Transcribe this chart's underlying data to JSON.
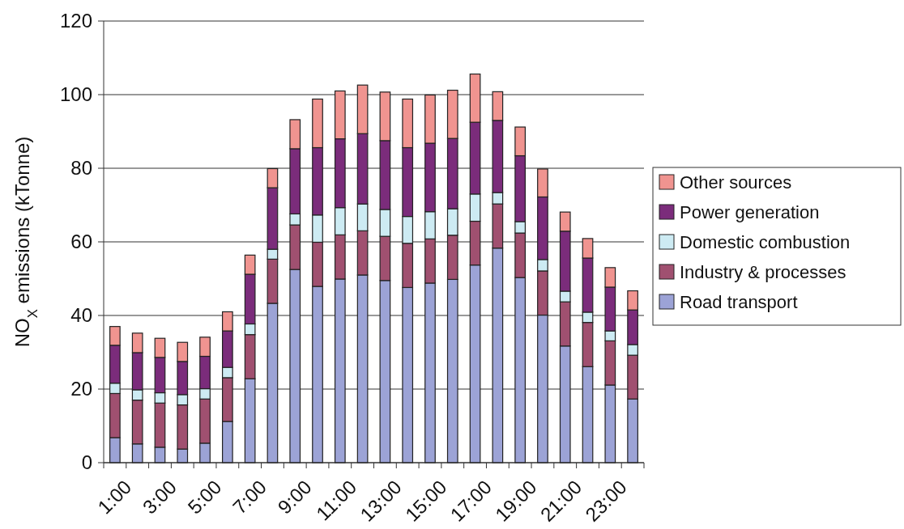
{
  "chart_data": {
    "type": "bar",
    "stacked": true,
    "ylabel": "NO$_{X}$ emissions (kTonne)",
    "categories": [
      "1:00",
      null,
      "3:00",
      null,
      "5:00",
      null,
      "7:00",
      null,
      "9:00",
      null,
      "11:00",
      null,
      "13:00",
      null,
      "15:00",
      null,
      "17:00",
      null,
      "19:00",
      null,
      "21:00",
      null,
      "23:00",
      null
    ],
    "series": [
      {
        "name": "Road transport",
        "color": "#9ca3d6",
        "values": [
          6.8,
          5.1,
          4.2,
          3.7,
          5.3,
          11.2,
          22.8,
          43.3,
          52.5,
          47.9,
          49.9,
          51.0,
          49.5,
          47.6,
          48.8,
          49.8,
          53.7,
          58.3,
          50.3,
          40.1,
          31.7,
          26.1,
          21.1,
          17.3
        ]
      },
      {
        "name": "Industry & processes",
        "color": "#a05070",
        "values": [
          12.0,
          11.9,
          12.0,
          12.0,
          12.0,
          11.9,
          12.0,
          12.0,
          12.1,
          12.0,
          12.0,
          12.0,
          12.0,
          12.0,
          12.0,
          12.0,
          11.9,
          12.0,
          12.1,
          12.0,
          12.0,
          12.0,
          12.0,
          11.9
        ]
      },
      {
        "name": "Domestic combustion",
        "color": "#cdebf3",
        "values": [
          2.8,
          2.8,
          2.8,
          2.8,
          2.8,
          2.8,
          2.9,
          2.7,
          3.0,
          7.4,
          7.4,
          7.3,
          7.3,
          7.3,
          7.4,
          7.2,
          7.4,
          3.1,
          3.1,
          3.1,
          2.9,
          2.8,
          2.7,
          2.9
        ]
      },
      {
        "name": "Power generation",
        "color": "#7b2c7b",
        "values": [
          10.3,
          10.1,
          9.6,
          9.0,
          8.8,
          9.9,
          13.5,
          16.7,
          17.7,
          18.3,
          18.7,
          19.1,
          18.7,
          18.7,
          18.6,
          19.1,
          19.5,
          19.6,
          17.9,
          17.0,
          16.3,
          14.7,
          11.9,
          9.4
        ]
      },
      {
        "name": "Other sources",
        "color": "#f09490",
        "values": [
          5.1,
          5.3,
          5.2,
          5.2,
          5.2,
          5.2,
          5.2,
          5.2,
          7.9,
          13.2,
          13.0,
          13.2,
          13.2,
          13.2,
          13.1,
          13.1,
          13.1,
          7.8,
          7.8,
          7.6,
          5.2,
          5.3,
          5.3,
          5.2
        ]
      }
    ],
    "ylim": [
      0,
      120
    ],
    "yticks": [
      0,
      20,
      40,
      60,
      80,
      100,
      120
    ],
    "grid": "y",
    "legend": "right"
  }
}
